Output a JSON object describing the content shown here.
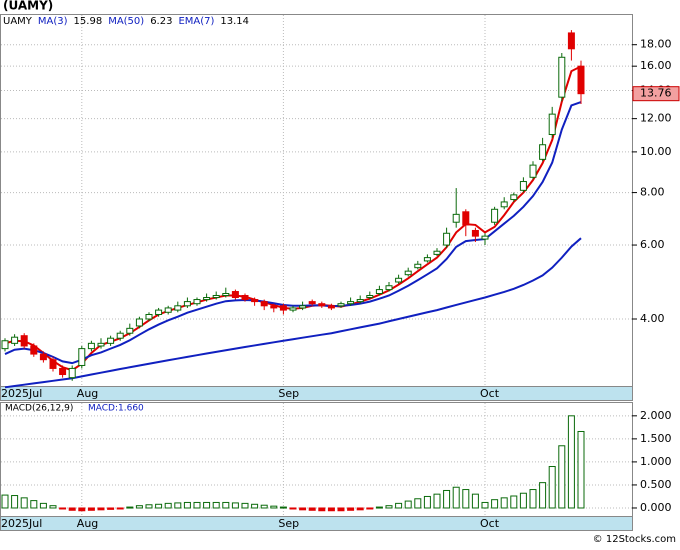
{
  "chart_data": {
    "type": "candlestick",
    "title": "(UAMY)",
    "symbol": "UAMY",
    "log": true,
    "grid": true,
    "categories": [
      "2025Jul",
      null,
      null,
      null,
      null,
      null,
      null,
      null,
      "Aug",
      null,
      null,
      null,
      null,
      null,
      null,
      null,
      null,
      null,
      null,
      null,
      null,
      null,
      null,
      null,
      null,
      null,
      null,
      null,
      null,
      "Sep",
      null,
      null,
      null,
      null,
      null,
      null,
      null,
      null,
      null,
      null,
      null,
      null,
      null,
      null,
      null,
      null,
      null,
      null,
      null,
      null,
      "Oct",
      null,
      null,
      null,
      null,
      null,
      null,
      null,
      null,
      null,
      null
    ],
    "open": [
      3.4,
      3.5,
      3.65,
      3.45,
      3.3,
      3.2,
      3.05,
      2.9,
      3.1,
      3.4,
      3.45,
      3.5,
      3.6,
      3.7,
      3.85,
      4.0,
      4.1,
      4.15,
      4.2,
      4.3,
      4.35,
      4.45,
      4.5,
      4.55,
      4.65,
      4.55,
      4.45,
      4.4,
      4.3,
      4.3,
      4.2,
      4.25,
      4.4,
      4.35,
      4.3,
      4.3,
      4.35,
      4.4,
      4.5,
      4.6,
      4.7,
      4.9,
      5.1,
      5.3,
      5.5,
      5.7,
      6.0,
      6.8,
      7.2,
      6.5,
      6.2,
      6.8,
      7.4,
      7.7,
      8.1,
      8.7,
      9.6,
      11.0,
      13.5,
      19.2,
      16.0
    ],
    "high": [
      3.6,
      3.68,
      3.7,
      3.5,
      3.35,
      3.25,
      3.1,
      3.1,
      3.45,
      3.55,
      3.6,
      3.65,
      3.75,
      3.9,
      4.05,
      4.15,
      4.25,
      4.3,
      4.4,
      4.5,
      4.5,
      4.6,
      4.65,
      4.75,
      4.7,
      4.6,
      4.5,
      4.45,
      4.35,
      4.35,
      4.3,
      4.4,
      4.45,
      4.4,
      4.35,
      4.4,
      4.5,
      4.55,
      4.65,
      4.8,
      4.9,
      5.1,
      5.3,
      5.5,
      5.7,
      5.9,
      6.6,
      8.2,
      7.3,
      6.6,
      6.4,
      7.4,
      7.8,
      8.0,
      8.7,
      9.5,
      10.8,
      12.8,
      17.2,
      19.5,
      16.5
    ],
    "low": [
      3.35,
      3.45,
      3.4,
      3.25,
      3.15,
      3.0,
      2.9,
      2.85,
      3.05,
      3.35,
      3.4,
      3.45,
      3.55,
      3.65,
      3.8,
      3.95,
      4.05,
      4.1,
      4.15,
      4.25,
      4.3,
      4.4,
      4.45,
      4.5,
      4.45,
      4.4,
      4.3,
      4.2,
      4.15,
      4.1,
      4.15,
      4.2,
      4.3,
      4.25,
      4.2,
      4.25,
      4.3,
      4.35,
      4.45,
      4.55,
      4.65,
      4.85,
      5.05,
      5.25,
      5.45,
      5.65,
      5.9,
      6.6,
      6.3,
      6.1,
      6.0,
      6.7,
      7.3,
      7.6,
      8.0,
      8.6,
      9.5,
      10.8,
      13.2,
      16.5,
      13.0
    ],
    "close": [
      3.55,
      3.62,
      3.45,
      3.3,
      3.2,
      3.05,
      2.95,
      3.05,
      3.4,
      3.5,
      3.5,
      3.6,
      3.7,
      3.8,
      4.0,
      4.1,
      4.2,
      4.25,
      4.3,
      4.4,
      4.45,
      4.5,
      4.55,
      4.6,
      4.5,
      4.45,
      4.4,
      4.3,
      4.25,
      4.2,
      4.25,
      4.3,
      4.35,
      4.3,
      4.25,
      4.35,
      4.4,
      4.45,
      4.55,
      4.7,
      4.8,
      5.0,
      5.2,
      5.4,
      5.6,
      5.8,
      6.4,
      7.1,
      6.7,
      6.3,
      6.3,
      7.3,
      7.6,
      7.9,
      8.5,
      9.3,
      10.4,
      12.3,
      16.8,
      17.6,
      13.76
    ],
    "series": [
      {
        "name": "MA(3)",
        "current": 15.98,
        "color": "#e00000",
        "values": [
          3.5,
          3.55,
          3.54,
          3.46,
          3.32,
          3.18,
          3.07,
          3.02,
          3.13,
          3.32,
          3.47,
          3.53,
          3.6,
          3.7,
          3.83,
          3.97,
          4.1,
          4.18,
          4.25,
          4.32,
          4.38,
          4.45,
          4.5,
          4.55,
          4.55,
          4.52,
          4.45,
          4.38,
          4.32,
          4.25,
          4.23,
          4.25,
          4.3,
          4.32,
          4.3,
          4.28,
          4.33,
          4.4,
          4.47,
          4.57,
          4.68,
          4.83,
          5.0,
          5.2,
          5.4,
          5.6,
          5.93,
          6.43,
          6.73,
          6.7,
          6.43,
          6.63,
          7.07,
          7.6,
          8.0,
          8.57,
          9.4,
          10.67,
          13.17,
          15.57,
          15.98
        ]
      },
      {
        "name": "MA(50)",
        "current": 6.23,
        "color": "#1020c0",
        "values": [
          2.75,
          2.77,
          2.79,
          2.81,
          2.83,
          2.85,
          2.87,
          2.89,
          2.92,
          2.95,
          2.98,
          3.01,
          3.04,
          3.07,
          3.1,
          3.13,
          3.16,
          3.19,
          3.22,
          3.25,
          3.28,
          3.31,
          3.34,
          3.37,
          3.4,
          3.43,
          3.46,
          3.49,
          3.52,
          3.55,
          3.58,
          3.61,
          3.64,
          3.67,
          3.7,
          3.74,
          3.78,
          3.82,
          3.86,
          3.9,
          3.95,
          4.0,
          4.05,
          4.1,
          4.15,
          4.2,
          4.26,
          4.32,
          4.38,
          4.44,
          4.5,
          4.57,
          4.64,
          4.72,
          4.82,
          4.94,
          5.08,
          5.3,
          5.6,
          5.95,
          6.23
        ]
      },
      {
        "name": "EMA(7)",
        "current": 13.14,
        "color": "#1020c0",
        "values": [
          3.3,
          3.38,
          3.4,
          3.37,
          3.32,
          3.25,
          3.17,
          3.14,
          3.2,
          3.28,
          3.33,
          3.4,
          3.47,
          3.56,
          3.67,
          3.78,
          3.88,
          3.97,
          4.05,
          4.14,
          4.21,
          4.28,
          4.35,
          4.41,
          4.43,
          4.44,
          4.43,
          4.4,
          4.36,
          4.32,
          4.3,
          4.3,
          4.31,
          4.31,
          4.29,
          4.3,
          4.32,
          4.35,
          4.4,
          4.47,
          4.55,
          4.67,
          4.8,
          4.95,
          5.11,
          5.28,
          5.56,
          5.94,
          6.13,
          6.17,
          6.2,
          6.47,
          6.75,
          7.04,
          7.4,
          7.85,
          8.48,
          9.43,
          11.3,
          12.9,
          13.14
        ]
      }
    ],
    "ylim": [
      2.77,
      21.3
    ],
    "yticks": [
      {
        "value": 4,
        "label": "4.00"
      },
      {
        "value": 6,
        "label": "6.00"
      },
      {
        "value": 8,
        "label": "8.00"
      },
      {
        "value": 10,
        "label": "10.00"
      },
      {
        "value": 12,
        "label": "12.00"
      },
      {
        "value": 14,
        "label": "14.00"
      },
      {
        "value": 16,
        "label": "16.00"
      },
      {
        "value": 18,
        "label": "18.00"
      }
    ],
    "macd": {
      "type": "bar",
      "title": "MACD(26,12,9)",
      "label": "MACD:",
      "current": "1.660",
      "values": [
        0.28,
        0.27,
        0.22,
        0.16,
        0.1,
        0.05,
        -0.02,
        -0.05,
        -0.06,
        -0.05,
        -0.04,
        -0.03,
        -0.02,
        0.02,
        0.05,
        0.07,
        0.08,
        0.1,
        0.11,
        0.12,
        0.12,
        0.12,
        0.12,
        0.12,
        0.11,
        0.1,
        0.08,
        0.06,
        0.04,
        0.02,
        -0.02,
        -0.04,
        -0.05,
        -0.06,
        -0.06,
        -0.06,
        -0.05,
        -0.04,
        -0.02,
        0.02,
        0.05,
        0.1,
        0.15,
        0.2,
        0.25,
        0.3,
        0.38,
        0.45,
        0.4,
        0.3,
        0.12,
        0.18,
        0.22,
        0.26,
        0.32,
        0.4,
        0.55,
        0.9,
        1.35,
        2.0,
        1.66
      ],
      "ylim": [
        -0.174,
        2.3
      ],
      "yticks": [
        {
          "value": 0,
          "label": "0.000"
        },
        {
          "value": 0.5,
          "label": "0.500"
        },
        {
          "value": 1,
          "label": "1.000"
        },
        {
          "value": 1.5,
          "label": "1.500"
        },
        {
          "value": 2,
          "label": "2.000"
        }
      ]
    },
    "footer": "© 12Stocks.com"
  }
}
